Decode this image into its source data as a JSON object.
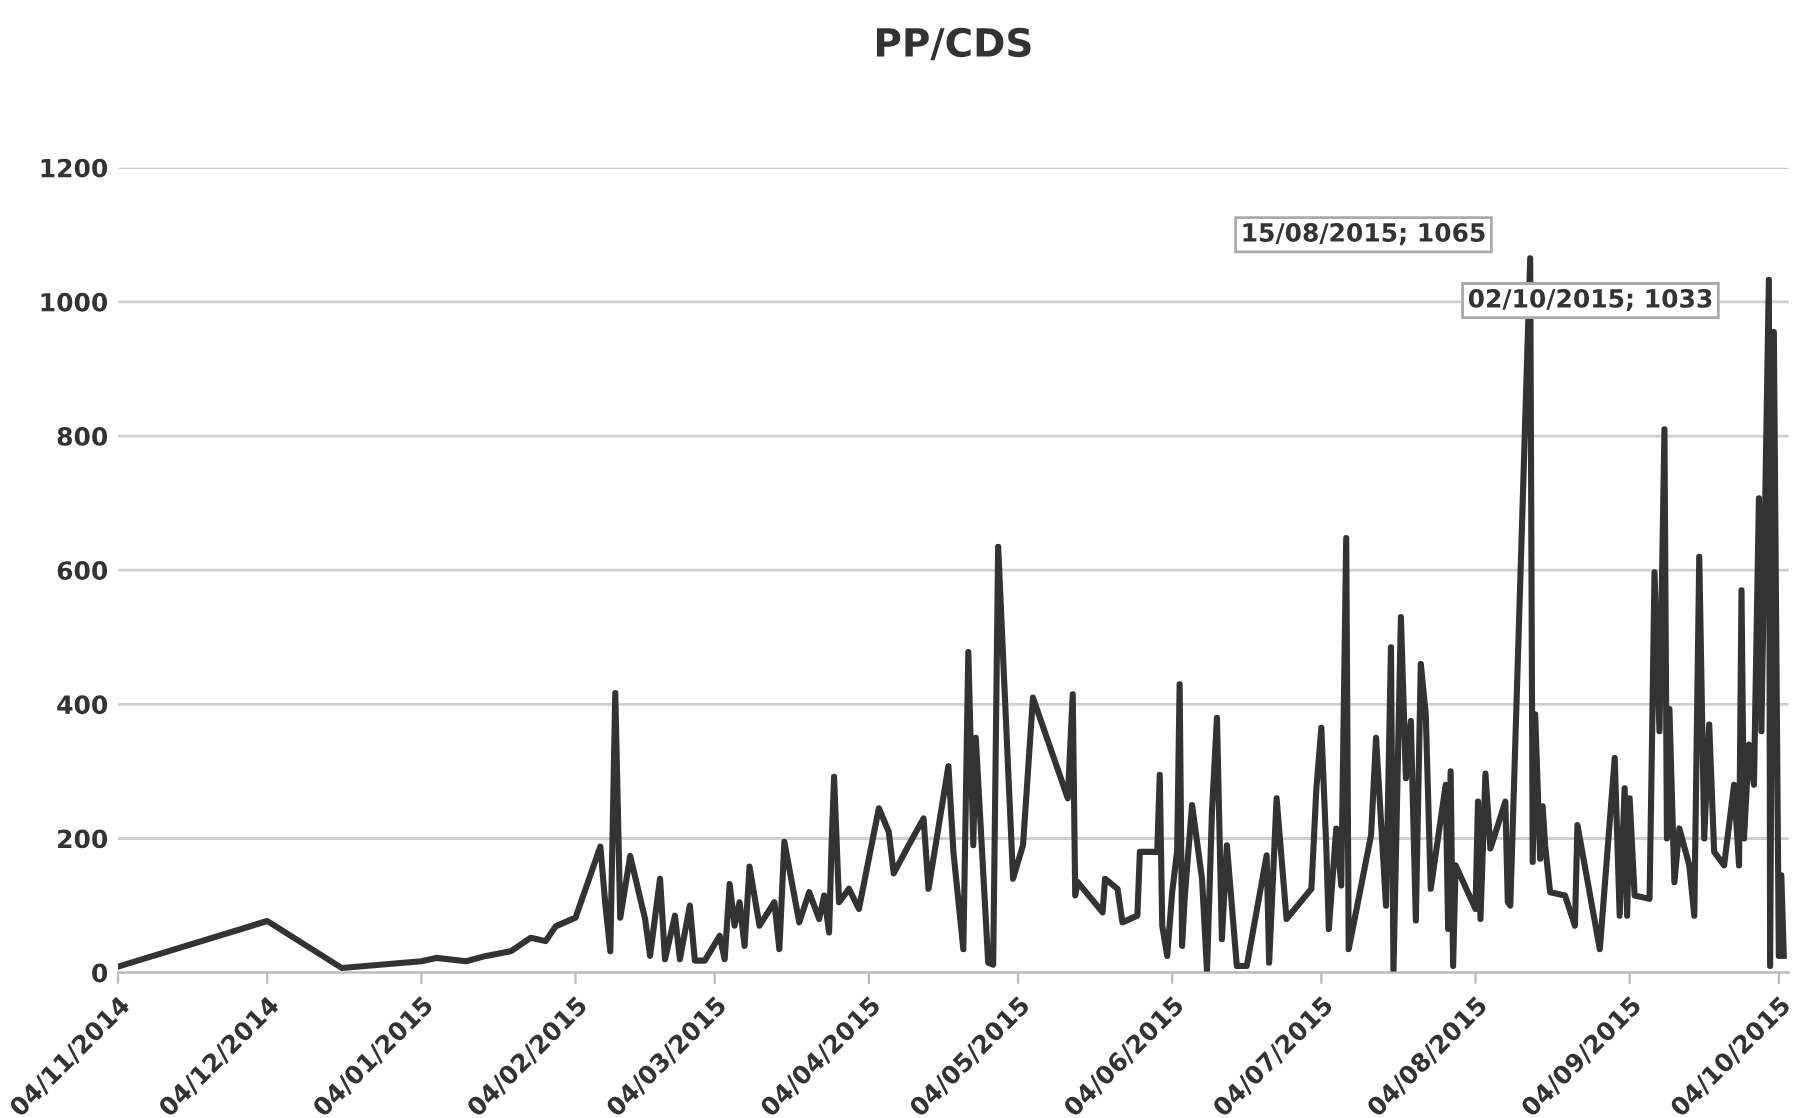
{
  "chart_data": {
    "type": "line",
    "title": "PP/CDS",
    "grid": "y",
    "legend": false,
    "marker": "none",
    "line_style": "solid",
    "ylim": [
      0,
      1200
    ],
    "yticks": [
      0,
      200,
      400,
      600,
      800,
      1000,
      1200
    ],
    "xlim": [
      "2014-11-04",
      "2015-10-06"
    ],
    "xticks": [
      {
        "value": "2014-11-04",
        "label": "04/11/2014"
      },
      {
        "value": "2014-12-04",
        "label": "04/12/2014"
      },
      {
        "value": "2015-01-04",
        "label": "04/01/2015"
      },
      {
        "value": "2015-02-04",
        "label": "04/02/2015"
      },
      {
        "value": "2015-03-04",
        "label": "04/03/2015"
      },
      {
        "value": "2015-04-04",
        "label": "04/04/2015"
      },
      {
        "value": "2015-05-04",
        "label": "04/05/2015"
      },
      {
        "value": "2015-06-04",
        "label": "04/06/2015"
      },
      {
        "value": "2015-07-04",
        "label": "04/07/2015"
      },
      {
        "value": "2015-08-04",
        "label": "04/08/2015"
      },
      {
        "value": "2015-09-04",
        "label": "04/09/2015"
      },
      {
        "value": "2015-10-04",
        "label": "04/10/2015"
      }
    ],
    "annotations": [
      {
        "text": "15/08/2015; 1065",
        "x": "2015-08-15",
        "y": 1065
      },
      {
        "text": "02/10/2015; 1033",
        "x": "2015-10-02",
        "y": 1033
      }
    ],
    "series": [
      {
        "color": "#333333",
        "x": [
          "2014-11-04",
          "2014-12-04",
          "2014-12-19",
          "2015-01-04",
          "2015-01-07",
          "2015-01-13",
          "2015-01-17",
          "2015-01-22",
          "2015-01-26",
          "2015-01-29",
          "2015-01-31",
          "2015-02-04",
          "2015-02-09",
          "2015-02-10",
          "2015-02-11",
          "2015-02-12",
          "2015-02-13",
          "2015-02-15",
          "2015-02-18",
          "2015-02-19",
          "2015-02-21",
          "2015-02-22",
          "2015-02-24",
          "2015-02-25",
          "2015-02-27",
          "2015-02-28",
          "2015-03-02",
          "2015-03-05",
          "2015-03-06",
          "2015-03-07",
          "2015-03-08",
          "2015-03-09",
          "2015-03-10",
          "2015-03-11",
          "2015-03-13",
          "2015-03-16",
          "2015-03-17",
          "2015-03-18",
          "2015-03-21",
          "2015-03-23",
          "2015-03-25",
          "2015-03-26",
          "2015-03-27",
          "2015-03-27T12:00",
          "2015-03-28",
          "2015-03-29",
          "2015-03-31",
          "2015-04-02",
          "2015-04-06",
          "2015-04-08",
          "2015-04-09",
          "2015-04-12",
          "2015-04-15",
          "2015-04-16",
          "2015-04-20",
          "2015-04-21",
          "2015-04-23",
          "2015-04-24",
          "2015-04-25",
          "2015-04-25T12:00",
          "2015-04-28",
          "2015-04-29",
          "2015-04-30",
          "2015-05-03",
          "2015-05-05",
          "2015-05-07",
          "2015-05-14",
          "2015-05-15",
          "2015-05-15T12:00",
          "2015-05-16",
          "2015-05-21",
          "2015-05-21T12:00",
          "2015-05-24",
          "2015-05-25",
          "2015-05-28",
          "2015-05-28T12:00",
          "2015-06-01",
          "2015-06-01T12:00",
          "2015-06-02",
          "2015-06-03",
          "2015-06-04",
          "2015-06-05",
          "2015-06-05T12:00",
          "2015-06-06",
          "2015-06-06T12:00",
          "2015-06-08",
          "2015-06-10",
          "2015-06-11",
          "2015-06-12",
          "2015-06-13",
          "2015-06-14",
          "2015-06-15",
          "2015-06-17",
          "2015-06-19",
          "2015-06-23",
          "2015-06-23T12:00",
          "2015-06-25",
          "2015-06-27",
          "2015-07-02",
          "2015-07-03",
          "2015-07-04",
          "2015-07-05",
          "2015-07-05T12:00",
          "2015-07-07",
          "2015-07-08",
          "2015-07-09",
          "2015-07-09T12:00",
          "2015-07-14",
          "2015-07-15",
          "2015-07-17",
          "2015-07-18",
          "2015-07-18T12:00",
          "2015-07-20",
          "2015-07-21",
          "2015-07-22",
          "2015-07-23",
          "2015-07-24",
          "2015-07-25",
          "2015-07-26",
          "2015-07-29",
          "2015-07-29T12:00",
          "2015-07-30",
          "2015-07-30T12:00",
          "2015-07-31",
          "2015-08-04",
          "2015-08-04T12:00",
          "2015-08-05",
          "2015-08-06",
          "2015-08-07",
          "2015-08-10",
          "2015-08-10T12:00",
          "2015-08-11",
          "2015-08-15",
          "2015-08-15T12:00",
          "2015-08-16",
          "2015-08-17",
          "2015-08-17T12:00",
          "2015-08-18",
          "2015-08-19",
          "2015-08-22",
          "2015-08-24",
          "2015-08-24T12:00",
          "2015-08-29",
          "2015-09-01",
          "2015-09-02",
          "2015-09-03",
          "2015-09-03T12:00",
          "2015-09-04",
          "2015-09-05",
          "2015-09-08",
          "2015-09-08T12:00",
          "2015-09-09",
          "2015-09-10",
          "2015-09-11",
          "2015-09-11T12:00",
          "2015-09-12",
          "2015-09-13",
          "2015-09-14",
          "2015-09-16",
          "2015-09-17",
          "2015-09-18",
          "2015-09-19",
          "2015-09-20",
          "2015-09-21",
          "2015-09-23",
          "2015-09-25",
          "2015-09-26",
          "2015-09-26T12:00",
          "2015-09-27",
          "2015-09-28",
          "2015-09-29",
          "2015-09-30",
          "2015-09-30T12:00",
          "2015-10-02",
          "2015-10-02T06:00",
          "2015-10-03",
          "2015-10-04",
          "2015-10-04T12:00",
          "2015-10-05"
        ],
        "values": [
          9,
          77,
          7,
          17,
          22,
          17,
          25,
          32,
          52,
          47,
          69,
          82,
          188,
          102,
          32,
          417,
          82,
          174,
          80,
          25,
          140,
          20,
          85,
          20,
          100,
          18,
          18,
          55,
          20,
          132,
          70,
          105,
          40,
          158,
          70,
          105,
          35,
          195,
          75,
          120,
          80,
          115,
          60,
          190,
          292,
          105,
          125,
          95,
          245,
          210,
          148,
          190,
          230,
          125,
          308,
          180,
          35,
          478,
          190,
          350,
          15,
          12,
          635,
          140,
          190,
          410,
          260,
          415,
          115,
          135,
          90,
          140,
          125,
          75,
          85,
          180,
          180,
          295,
          70,
          25,
          120,
          182,
          430,
          40,
          110,
          250,
          140,
          2,
          240,
          380,
          50,
          190,
          10,
          10,
          175,
          15,
          260,
          80,
          125,
          275,
          365,
          185,
          65,
          215,
          130,
          648,
          35,
          205,
          350,
          100,
          485,
          0,
          530,
          290,
          375,
          78,
          460,
          385,
          125,
          280,
          65,
          300,
          10,
          160,
          95,
          255,
          80,
          297,
          185,
          255,
          105,
          100,
          1065,
          165,
          385,
          170,
          248,
          190,
          120,
          115,
          70,
          220,
          35,
          320,
          85,
          275,
          85,
          260,
          115,
          110,
          345,
          597,
          360,
          810,
          200,
          393,
          135,
          215,
          160,
          85,
          620,
          200,
          370,
          180,
          160,
          280,
          160,
          570,
          200,
          340,
          280,
          707,
          360,
          1033,
          10,
          955,
          25,
          145,
          25
        ]
      }
    ]
  }
}
